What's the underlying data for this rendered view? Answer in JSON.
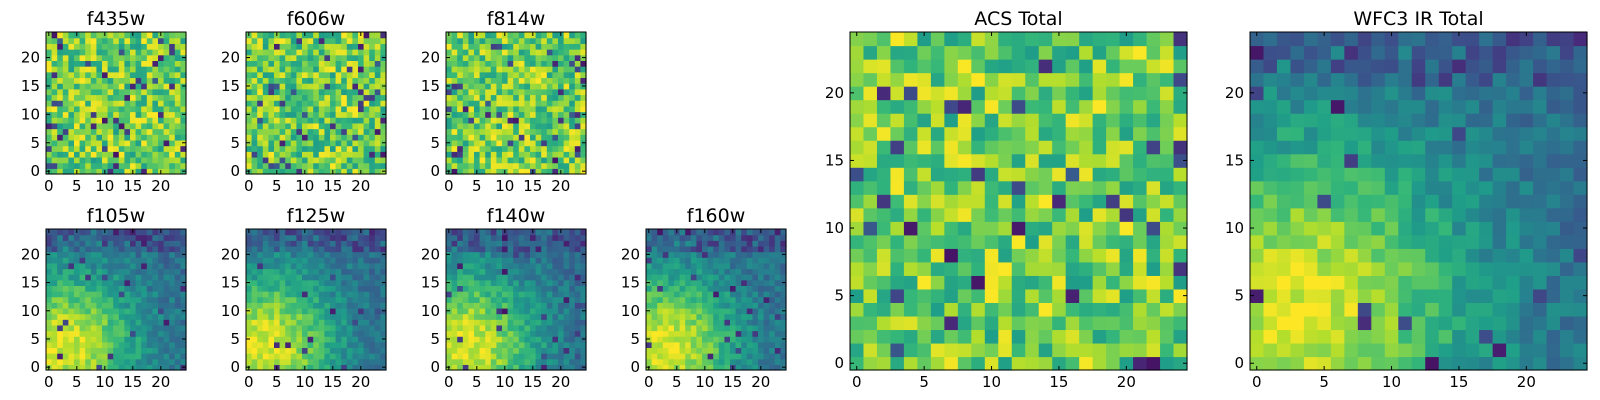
{
  "chart_data": {
    "type": "heatmap",
    "colormap": "viridis",
    "grid_size": 25,
    "axis_range": [
      0,
      24
    ],
    "panels": [
      {
        "id": "f435w",
        "title": "f435w",
        "xticks": [
          "0",
          "5",
          "10",
          "15",
          "20"
        ],
        "yticks": [
          "0",
          "5",
          "10",
          "15",
          "20"
        ],
        "pattern": "noise",
        "seed": 11
      },
      {
        "id": "f606w",
        "title": "f606w",
        "xticks": [
          "0",
          "5",
          "10",
          "15",
          "20"
        ],
        "yticks": [
          "0",
          "5",
          "10",
          "15",
          "20"
        ],
        "pattern": "noise",
        "seed": 23
      },
      {
        "id": "f814w",
        "title": "f814w",
        "xticks": [
          "0",
          "5",
          "10",
          "15",
          "20"
        ],
        "yticks": [
          "0",
          "5",
          "10",
          "15",
          "20"
        ],
        "pattern": "noise",
        "seed": 37
      },
      {
        "id": "f105w",
        "title": "f105w",
        "xticks": [
          "0",
          "5",
          "10",
          "15",
          "20"
        ],
        "yticks": [
          "0",
          "5",
          "10",
          "15",
          "20"
        ],
        "pattern": "source",
        "seed": 41
      },
      {
        "id": "f125w",
        "title": "f125w",
        "xticks": [
          "0",
          "5",
          "10",
          "15",
          "20"
        ],
        "yticks": [
          "0",
          "5",
          "10",
          "15",
          "20"
        ],
        "pattern": "source",
        "seed": 53
      },
      {
        "id": "f140w",
        "title": "f140w",
        "xticks": [
          "0",
          "5",
          "10",
          "15",
          "20"
        ],
        "yticks": [
          "0",
          "5",
          "10",
          "15",
          "20"
        ],
        "pattern": "source",
        "seed": 67
      },
      {
        "id": "f160w",
        "title": "f160w",
        "xticks": [
          "0",
          "5",
          "10",
          "15",
          "20"
        ],
        "yticks": [
          "0",
          "5",
          "10",
          "15",
          "20"
        ],
        "pattern": "source",
        "seed": 71
      },
      {
        "id": "acs-total",
        "title": "ACS Total",
        "xticks": [
          "0",
          "5",
          "10",
          "15",
          "20"
        ],
        "yticks": [
          "0",
          "5",
          "10",
          "15",
          "20"
        ],
        "pattern": "noise",
        "seed": 83
      },
      {
        "id": "wfc3-ir-total",
        "title": "WFC3 IR Total",
        "xticks": [
          "0",
          "5",
          "10",
          "15",
          "20"
        ],
        "yticks": [
          "0",
          "5",
          "10",
          "15",
          "20"
        ],
        "pattern": "source",
        "seed": 97
      }
    ]
  }
}
